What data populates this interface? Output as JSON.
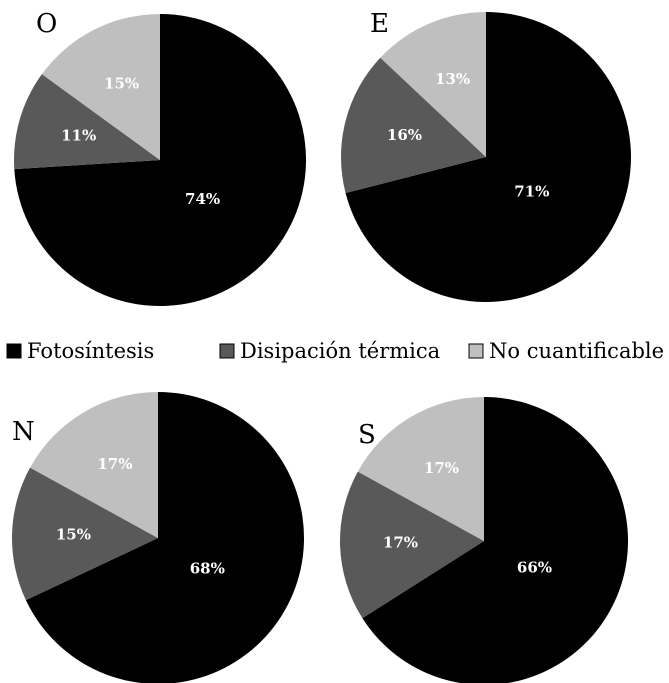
{
  "chart_data": [
    {
      "type": "pie",
      "panel": "O",
      "categories": [
        "Fotosíntesis",
        "Disipación térmica",
        "No cuantificable"
      ],
      "values": [
        74,
        11,
        15
      ],
      "labels": [
        "74%",
        "11%",
        "15%"
      ]
    },
    {
      "type": "pie",
      "panel": "E",
      "categories": [
        "Fotosíntesis",
        "Disipación térmica",
        "No cuantificable"
      ],
      "values": [
        71,
        16,
        13
      ],
      "labels": [
        "71%",
        "16%",
        "13%"
      ]
    },
    {
      "type": "pie",
      "panel": "N",
      "categories": [
        "Fotosíntesis",
        "Disipación térmica",
        "No cuantificable"
      ],
      "values": [
        68,
        15,
        17
      ],
      "labels": [
        "68%",
        "15%",
        "17%"
      ]
    },
    {
      "type": "pie",
      "panel": "S",
      "categories": [
        "Fotosíntesis",
        "Disipación térmica",
        "No cuantificable"
      ],
      "values": [
        66,
        17,
        17
      ],
      "labels": [
        "66%",
        "17%",
        "17%"
      ]
    }
  ],
  "legend": {
    "placement": "center",
    "items": [
      {
        "label": "Fotosíntesis",
        "color": "#000000"
      },
      {
        "label": "Disipación térmica",
        "color": "#595959"
      },
      {
        "label": "No cuantificable",
        "color": "#bfbfbf"
      }
    ]
  },
  "colors": [
    "#000000",
    "#595959",
    "#bfbfbf"
  ],
  "label_color": "#ffffff"
}
